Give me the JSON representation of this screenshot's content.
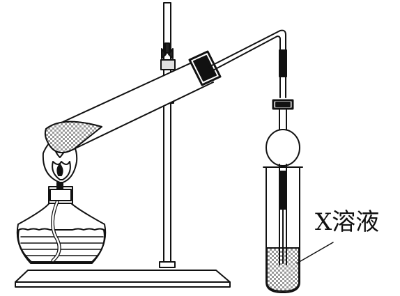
{
  "diagram": {
    "label_x_solution": "X溶液",
    "stroke_color": "#111111",
    "fill_color": "#ffffff",
    "sample_pattern": "gray-checker",
    "components": [
      "iron-stand",
      "clamp",
      "alcohol-lamp",
      "flame",
      "heated-test-tube",
      "stopper",
      "delivery-tube",
      "bulb-tube",
      "receiving-test-tube"
    ]
  }
}
